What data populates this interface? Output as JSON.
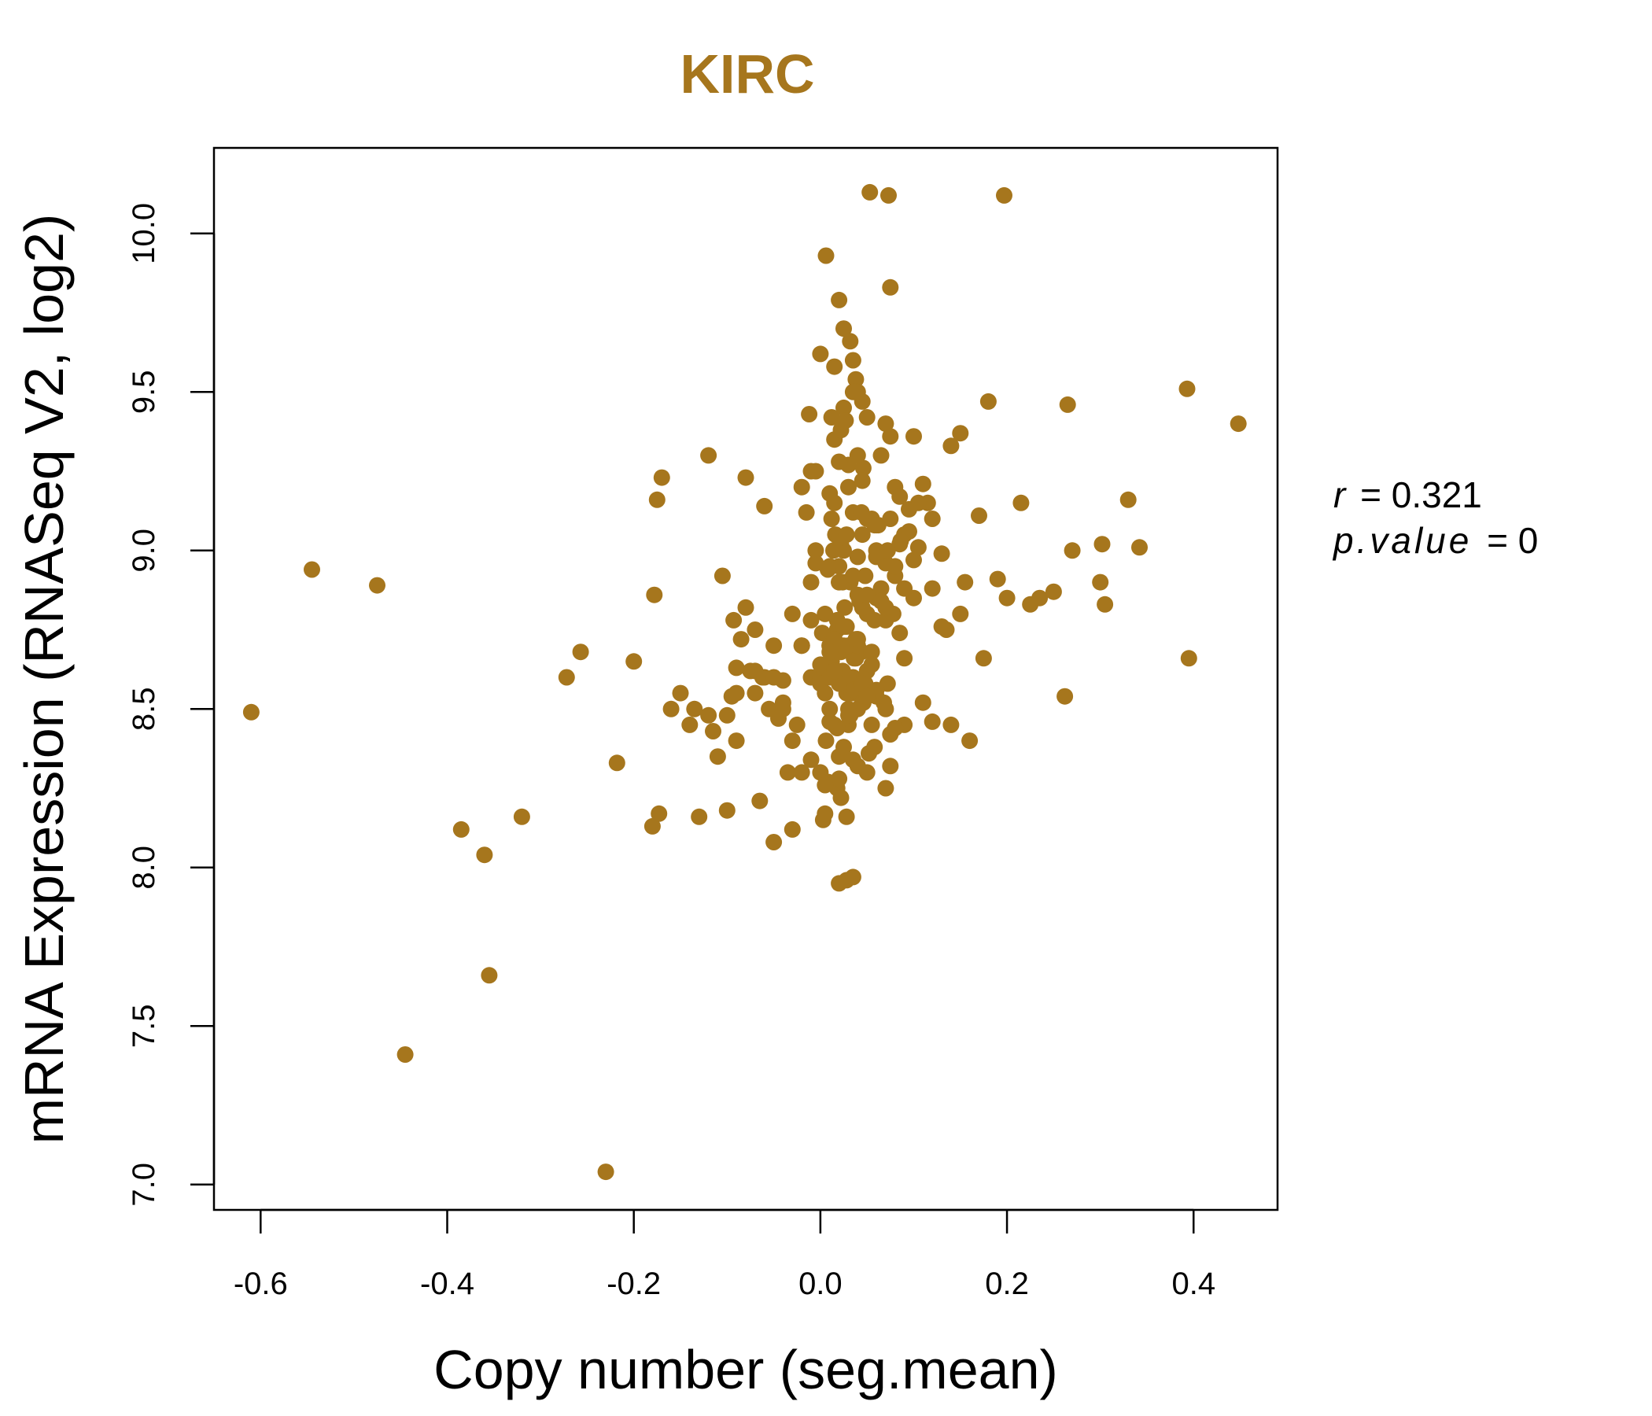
{
  "colors": {
    "point": "#A6761D",
    "title": "#A6761D",
    "axis": "#000000"
  },
  "chart_data": {
    "type": "scatter",
    "title": "KIRC",
    "xlabel": "Copy number (seg.mean)",
    "ylabel": "mRNA Expression (RNASeq V2, log2)",
    "xlim": [
      -0.65,
      0.49
    ],
    "ylim": [
      6.92,
      10.27
    ],
    "xticks": [
      -0.6,
      -0.4,
      -0.2,
      0.0,
      0.2,
      0.4
    ],
    "xtick_labels": [
      "-0.6",
      "-0.4",
      "-0.2",
      "0.0",
      "0.2",
      "0.4"
    ],
    "yticks": [
      7.0,
      7.5,
      8.0,
      8.5,
      9.0,
      9.5,
      10.0
    ],
    "ytick_labels": [
      "7.0",
      "7.5",
      "8.0",
      "8.5",
      "9.0",
      "9.5",
      "10.0"
    ],
    "stats": {
      "r_label": "r",
      "r_value": "0.321",
      "p_label": "p.value",
      "p_value": "0"
    },
    "x": [
      -0.61,
      -0.545,
      -0.475,
      -0.445,
      -0.385,
      -0.36,
      -0.355,
      -0.32,
      -0.272,
      -0.257,
      -0.23,
      -0.218,
      -0.2,
      -0.18,
      -0.178,
      -0.175,
      -0.173,
      -0.17,
      -0.15,
      -0.135,
      -0.13,
      -0.12,
      -0.115,
      -0.105,
      -0.1,
      -0.095,
      -0.093,
      -0.09,
      -0.08,
      -0.075,
      -0.07,
      -0.065,
      -0.06,
      -0.055,
      -0.05,
      -0.045,
      -0.04,
      -0.035,
      -0.03,
      -0.025,
      -0.02,
      -0.015,
      -0.01,
      -0.005,
      0.0,
      0.003,
      0.005,
      0.008,
      0.01,
      0.012,
      0.015,
      0.018,
      0.02,
      0.022,
      0.025,
      0.028,
      0.03,
      0.032,
      0.035,
      0.038,
      0.04,
      0.045,
      0.05,
      0.055,
      0.06,
      0.065,
      0.07,
      0.075,
      0.08,
      0.085,
      0.09,
      0.095,
      0.1,
      0.105,
      0.11,
      0.115,
      0.12,
      0.13,
      0.135,
      0.14,
      0.15,
      0.155,
      0.16,
      0.17,
      0.175,
      0.18,
      0.19,
      0.2,
      0.215,
      0.225,
      0.235,
      0.25,
      0.262,
      0.265,
      0.27,
      0.3,
      0.302,
      0.305,
      0.33,
      0.342,
      0.393,
      0.395,
      0.448,
      0.053,
      0.073,
      0.197,
      0.006,
      0.075,
      0.02,
      0.028,
      0.0,
      0.035,
      -0.012,
      0.038,
      0.046,
      0.015,
      0.035,
      0.025,
      0.022,
      0.027,
      0.04,
      -0.1,
      -0.085,
      -0.062,
      -0.04,
      -0.01,
      0.02,
      0.055,
      0.08,
      0.1,
      0.12,
      -0.16,
      -0.14,
      -0.11,
      -0.09,
      -0.07,
      -0.05,
      -0.03,
      -0.01,
      0.01,
      0.03,
      0.05,
      0.07,
      0.09,
      0.11,
      0.13,
      -0.12,
      -0.08,
      -0.06,
      -0.04,
      -0.02,
      0.0,
      0.02,
      0.04,
      0.06,
      0.08,
      0.1,
      0.14,
      -0.09,
      -0.07,
      -0.05,
      -0.03,
      -0.01,
      0.01,
      0.03,
      0.05,
      0.07,
      0.09,
      0.12,
      0.15,
      0.005,
      0.015,
      0.025,
      0.035,
      0.045,
      0.012,
      0.018,
      0.028,
      0.032,
      0.042,
      0.008,
      0.022,
      0.038,
      0.048,
      0.058,
      0.014,
      0.024,
      0.034,
      0.044,
      0.002,
      0.016,
      0.026,
      0.036,
      0.046,
      0.01,
      0.02,
      0.03,
      0.04,
      0.05,
      0.006,
      0.012,
      0.018,
      0.024,
      0.03,
      0.036,
      0.042,
      0.004,
      0.014,
      0.022,
      0.032,
      0.04,
      0.052,
      0.062,
      0.072,
      0.008,
      0.018,
      0.028,
      0.038,
      0.048,
      0.058,
      0.068,
      0.078,
      -0.005,
      0.0,
      0.01,
      0.02,
      0.03,
      0.04,
      0.05,
      0.06,
      0.07,
      0.015,
      0.025,
      0.035,
      0.045,
      0.055,
      0.065,
      0.075,
      0.085,
      0.01,
      0.02,
      0.03,
      0.04,
      0.05,
      0.06,
      0.07,
      0.08,
      0.09,
      0.005,
      0.015,
      0.025,
      0.035,
      0.045,
      0.055,
      0.065,
      0.075,
      0.0,
      0.01,
      0.02,
      0.03,
      0.04,
      0.05,
      0.06,
      0.07,
      0.02,
      0.025,
      0.04,
      -0.02,
      0.005,
      0.03,
      0.01,
      0.015,
      0.045,
      -0.01,
      0.02,
      0.035,
      0.045,
      0.06,
      0.075,
      0.085,
      0.095,
      0.105,
      -0.02,
      -0.005,
      0.012,
      0.028,
      0.044,
      0.058,
      0.072,
      0.086
    ],
    "y": [
      8.49,
      8.94,
      8.89,
      7.41,
      8.12,
      8.04,
      7.66,
      8.16,
      8.6,
      8.68,
      7.04,
      8.33,
      8.65,
      8.13,
      8.86,
      9.16,
      8.17,
      9.23,
      8.55,
      8.5,
      8.16,
      9.3,
      8.43,
      8.92,
      8.18,
      8.54,
      8.78,
      8.63,
      9.23,
      8.62,
      8.75,
      8.21,
      9.14,
      8.5,
      8.08,
      8.47,
      8.59,
      8.3,
      8.12,
      8.45,
      8.7,
      9.12,
      8.34,
      9.0,
      8.3,
      8.15,
      8.17,
      8.27,
      8.95,
      9.42,
      9.35,
      8.25,
      9.79,
      8.22,
      9.7,
      8.16,
      9.27,
      9.66,
      9.6,
      9.54,
      9.5,
      9.47,
      9.42,
      9.1,
      9.0,
      9.3,
      9.4,
      9.36,
      9.2,
      9.17,
      9.05,
      9.13,
      9.36,
      9.01,
      9.21,
      9.15,
      9.1,
      8.99,
      8.75,
      9.33,
      9.37,
      8.9,
      8.4,
      9.11,
      8.66,
      9.47,
      8.91,
      8.85,
      9.15,
      8.83,
      8.85,
      8.87,
      8.54,
      9.46,
      9.0,
      8.9,
      9.02,
      8.83,
      9.16,
      9.01,
      9.51,
      8.66,
      9.4,
      10.13,
      10.12,
      10.12,
      9.93,
      9.83,
      7.95,
      7.96,
      9.62,
      7.97,
      9.43,
      9.5,
      9.26,
      9.58,
      9.5,
      9.45,
      9.38,
      9.41,
      9.3,
      8.48,
      8.72,
      8.6,
      8.5,
      8.78,
      8.35,
      8.45,
      8.92,
      8.97,
      8.88,
      8.5,
      8.45,
      8.35,
      8.55,
      8.62,
      8.7,
      8.4,
      8.6,
      8.5,
      8.7,
      8.3,
      8.78,
      8.45,
      8.52,
      8.76,
      8.48,
      8.82,
      8.6,
      8.52,
      8.7,
      8.6,
      8.9,
      8.72,
      8.85,
      8.95,
      8.85,
      8.45,
      8.4,
      8.55,
      8.6,
      8.8,
      8.9,
      8.7,
      8.6,
      8.8,
      8.5,
      8.88,
      8.46,
      8.8,
      8.55,
      8.45,
      8.7,
      8.6,
      8.82,
      8.65,
      8.75,
      8.55,
      8.9,
      8.85,
      8.62,
      8.68,
      8.72,
      8.58,
      8.78,
      9.0,
      8.62,
      8.55,
      8.68,
      8.74,
      9.05,
      8.82,
      8.66,
      8.52,
      8.7,
      8.95,
      8.6,
      8.5,
      9.1,
      8.4,
      8.65,
      8.78,
      8.9,
      8.45,
      8.56,
      8.84,
      8.62,
      8.7,
      9.02,
      8.48,
      8.86,
      8.36,
      9.08,
      8.58,
      8.94,
      8.44,
      8.76,
      8.66,
      8.92,
      8.38,
      8.52,
      8.8,
      8.96,
      8.64,
      8.46,
      8.58,
      8.7,
      8.98,
      8.62,
      8.54,
      8.82,
      8.72,
      9.0,
      8.34,
      8.58,
      8.68,
      8.88,
      8.42,
      8.74,
      8.6,
      9.04,
      8.5,
      8.7,
      8.86,
      8.56,
      8.96,
      8.44,
      8.66,
      8.8,
      8.62,
      8.76,
      8.92,
      8.52,
      8.64,
      8.84,
      8.32,
      8.58,
      8.68,
      8.9,
      8.48,
      8.72,
      8.54,
      8.98,
      8.25,
      8.28,
      8.38,
      8.32,
      8.3,
      8.26,
      9.2,
      9.18,
      9.15,
      9.22,
      9.25,
      9.28,
      9.12,
      9.05,
      9.08,
      9.1,
      9.02,
      9.06,
      9.15,
      9.2,
      9.25,
      9.1,
      9.05,
      9.12,
      9.08,
      9.0,
      9.03
    ]
  }
}
